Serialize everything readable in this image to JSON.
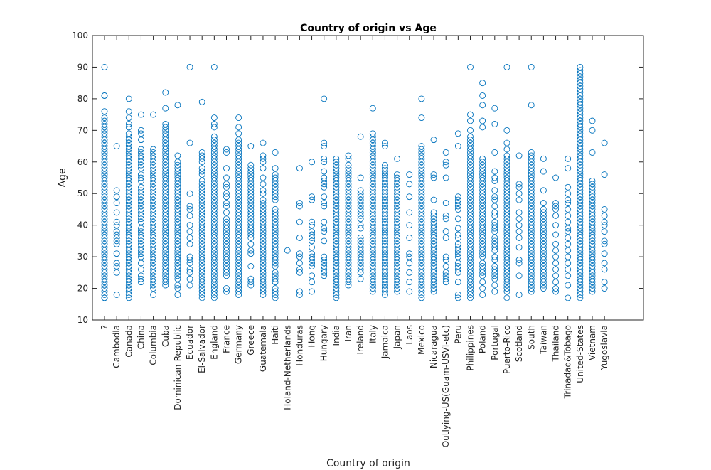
{
  "chart_data": {
    "type": "scatter",
    "title": "Country of origin vs Age",
    "xlabel": "Country of origin",
    "ylabel": "Age",
    "ylim": [
      10,
      100
    ],
    "yticks": [
      10,
      20,
      30,
      40,
      50,
      60,
      70,
      80,
      90,
      100
    ],
    "grid": false,
    "legend": "none",
    "marker": "open-circle",
    "marker_color": "#0072BD",
    "categories": [
      "?",
      "Cambodia",
      "Canada",
      "China",
      "Columbia",
      "Cuba",
      "Dominican-Republic",
      "Ecuador",
      "El-Salvador",
      "England",
      "France",
      "Germany",
      "Greece",
      "Guatemala",
      "Haiti",
      "Holand-Netherlands",
      "Honduras",
      "Hong",
      "Hungary",
      "India",
      "Iran",
      "Ireland",
      "Italy",
      "Jamaica",
      "Japan",
      "Laos",
      "Mexico",
      "Nicaragua",
      "Outlying-US(Guam-USVI-etc)",
      "Peru",
      "Philippines",
      "Poland",
      "Portugal",
      "Puerto-Rico",
      "Scotland",
      "South",
      "Taiwan",
      "Thailand",
      "Trinadad&Tobago",
      "United-States",
      "Vietnam",
      "Yugoslavia"
    ],
    "points": [
      [
        17,
        17,
        18,
        19,
        20,
        21,
        22,
        23,
        24,
        25,
        26,
        27,
        28,
        29,
        30,
        31,
        32,
        33,
        34,
        35,
        36,
        37,
        38,
        39,
        40,
        41,
        42,
        43,
        44,
        45,
        46,
        47,
        48,
        49,
        50,
        51,
        52,
        53,
        54,
        55,
        56,
        57,
        58,
        59,
        60,
        61,
        62,
        63,
        64,
        65,
        66,
        67,
        68,
        69,
        70,
        71,
        72,
        73,
        74,
        76,
        81,
        81,
        90
      ],
      [
        18,
        25,
        27,
        28,
        31,
        34,
        35,
        36,
        37,
        38,
        40,
        41,
        44,
        47,
        49,
        51,
        65
      ],
      [
        17,
        18,
        19,
        20,
        21,
        22,
        23,
        24,
        25,
        26,
        27,
        28,
        29,
        30,
        31,
        32,
        33,
        34,
        35,
        36,
        37,
        38,
        39,
        40,
        41,
        42,
        43,
        44,
        45,
        46,
        47,
        48,
        49,
        50,
        51,
        52,
        53,
        54,
        55,
        56,
        57,
        58,
        59,
        60,
        61,
        62,
        63,
        64,
        65,
        66,
        67,
        68,
        69,
        71,
        72,
        74,
        76,
        80
      ],
      [
        22,
        23,
        24,
        26,
        28,
        30,
        31,
        32,
        33,
        34,
        35,
        36,
        37,
        38,
        39,
        41,
        42,
        43,
        44,
        45,
        46,
        47,
        48,
        49,
        50,
        51,
        52,
        54,
        55,
        56,
        58,
        59,
        60,
        61,
        62,
        63,
        64,
        67,
        69,
        70,
        75
      ],
      [
        18,
        20,
        21,
        22,
        23,
        24,
        25,
        26,
        27,
        28,
        29,
        30,
        31,
        32,
        33,
        34,
        35,
        36,
        37,
        38,
        39,
        40,
        41,
        42,
        43,
        44,
        45,
        46,
        47,
        48,
        49,
        50,
        51,
        52,
        53,
        54,
        55,
        56,
        57,
        58,
        59,
        60,
        61,
        62,
        63,
        64,
        75
      ],
      [
        21,
        22,
        23,
        24,
        25,
        26,
        27,
        28,
        29,
        30,
        31,
        32,
        33,
        34,
        35,
        36,
        37,
        38,
        39,
        40,
        41,
        42,
        43,
        44,
        45,
        46,
        47,
        48,
        49,
        50,
        51,
        52,
        53,
        54,
        55,
        56,
        57,
        58,
        59,
        60,
        61,
        62,
        63,
        64,
        65,
        66,
        67,
        68,
        69,
        70,
        71,
        72,
        77,
        82
      ],
      [
        18,
        20,
        21,
        23,
        24,
        25,
        26,
        27,
        28,
        29,
        30,
        31,
        32,
        33,
        34,
        35,
        36,
        37,
        38,
        39,
        40,
        41,
        42,
        43,
        44,
        45,
        46,
        47,
        48,
        49,
        50,
        51,
        52,
        53,
        54,
        55,
        56,
        57,
        58,
        59,
        60,
        62,
        78
      ],
      [
        21,
        23,
        25,
        26,
        28,
        29,
        30,
        34,
        36,
        38,
        40,
        43,
        45,
        46,
        50,
        66,
        90
      ],
      [
        17,
        18,
        19,
        20,
        21,
        22,
        23,
        24,
        25,
        26,
        27,
        28,
        29,
        30,
        31,
        32,
        33,
        34,
        35,
        36,
        37,
        38,
        39,
        40,
        41,
        42,
        43,
        44,
        45,
        46,
        47,
        48,
        49,
        50,
        51,
        52,
        53,
        54,
        56,
        57,
        58,
        60,
        61,
        62,
        63,
        79
      ],
      [
        17,
        18,
        19,
        20,
        21,
        22,
        23,
        24,
        25,
        26,
        27,
        28,
        29,
        30,
        31,
        32,
        33,
        34,
        35,
        36,
        37,
        38,
        39,
        40,
        41,
        42,
        43,
        44,
        45,
        46,
        47,
        48,
        49,
        50,
        51,
        52,
        53,
        54,
        55,
        56,
        57,
        58,
        59,
        60,
        61,
        62,
        63,
        64,
        65,
        66,
        67,
        68,
        71,
        72,
        74,
        90
      ],
      [
        19,
        20,
        24,
        25,
        26,
        27,
        28,
        29,
        30,
        31,
        32,
        33,
        34,
        35,
        36,
        37,
        38,
        39,
        40,
        41,
        42,
        44,
        46,
        47,
        49,
        50,
        52,
        53,
        55,
        58,
        63,
        64
      ],
      [
        18,
        19,
        20,
        21,
        22,
        23,
        24,
        25,
        26,
        27,
        28,
        29,
        30,
        31,
        32,
        33,
        34,
        35,
        36,
        37,
        38,
        39,
        40,
        41,
        42,
        43,
        44,
        45,
        46,
        47,
        48,
        49,
        50,
        51,
        52,
        53,
        54,
        55,
        56,
        57,
        58,
        59,
        60,
        61,
        62,
        63,
        64,
        65,
        66,
        67,
        69,
        71,
        74
      ],
      [
        21,
        22,
        23,
        27,
        31,
        32,
        34,
        36,
        37,
        38,
        39,
        40,
        41,
        42,
        43,
        44,
        45,
        46,
        47,
        48,
        49,
        50,
        51,
        52,
        53,
        54,
        55,
        56,
        57,
        58,
        59,
        65
      ],
      [
        18,
        19,
        20,
        21,
        22,
        23,
        24,
        25,
        26,
        27,
        28,
        29,
        30,
        31,
        32,
        33,
        34,
        35,
        36,
        37,
        38,
        39,
        40,
        41,
        42,
        43,
        44,
        45,
        46,
        47,
        48,
        50,
        51,
        53,
        55,
        58,
        60,
        61,
        62,
        66
      ],
      [
        17,
        18,
        19,
        20,
        22,
        23,
        24,
        25,
        27,
        28,
        29,
        30,
        31,
        32,
        33,
        34,
        35,
        36,
        37,
        38,
        39,
        40,
        41,
        42,
        43,
        44,
        45,
        48,
        49,
        50,
        51,
        52,
        53,
        54,
        55,
        56,
        58,
        63
      ],
      [
        32
      ],
      [
        18,
        19,
        25,
        26,
        28,
        30,
        31,
        36,
        41,
        46,
        47,
        58
      ],
      [
        19,
        22,
        24,
        27,
        28,
        29,
        30,
        31,
        33,
        35,
        36,
        37,
        38,
        40,
        41,
        48,
        49,
        60
      ],
      [
        24,
        25,
        26,
        27,
        28,
        29,
        30,
        35,
        38,
        39,
        41,
        46,
        47,
        49,
        52,
        53,
        54,
        55,
        57,
        60,
        61,
        65,
        66,
        80
      ],
      [
        17,
        18,
        19,
        20,
        21,
        22,
        23,
        24,
        25,
        26,
        27,
        28,
        29,
        30,
        31,
        32,
        33,
        34,
        35,
        36,
        37,
        38,
        39,
        40,
        41,
        42,
        43,
        44,
        45,
        46,
        47,
        48,
        49,
        50,
        51,
        52,
        53,
        54,
        55,
        56,
        57,
        58,
        59,
        60,
        61
      ],
      [
        21,
        22,
        23,
        24,
        25,
        26,
        27,
        28,
        29,
        30,
        31,
        32,
        33,
        34,
        35,
        36,
        37,
        38,
        39,
        40,
        41,
        42,
        43,
        44,
        45,
        46,
        47,
        48,
        49,
        50,
        51,
        52,
        53,
        54,
        55,
        56,
        57,
        58,
        59,
        61,
        62
      ],
      [
        23,
        25,
        26,
        27,
        28,
        29,
        30,
        31,
        32,
        33,
        34,
        35,
        36,
        39,
        40,
        42,
        43,
        44,
        45,
        46,
        47,
        48,
        49,
        50,
        51,
        55,
        68
      ],
      [
        19,
        20,
        21,
        22,
        23,
        24,
        25,
        26,
        27,
        28,
        29,
        30,
        31,
        32,
        33,
        34,
        35,
        36,
        37,
        38,
        39,
        40,
        41,
        42,
        43,
        44,
        45,
        46,
        47,
        48,
        49,
        50,
        51,
        52,
        53,
        54,
        55,
        56,
        57,
        58,
        59,
        60,
        61,
        62,
        63,
        64,
        65,
        66,
        67,
        68,
        69,
        77
      ],
      [
        18,
        19,
        20,
        21,
        22,
        23,
        24,
        25,
        26,
        27,
        28,
        29,
        30,
        31,
        32,
        33,
        34,
        35,
        36,
        37,
        38,
        39,
        40,
        41,
        42,
        43,
        44,
        45,
        46,
        47,
        48,
        49,
        50,
        51,
        52,
        53,
        54,
        55,
        56,
        57,
        58,
        59,
        65,
        66
      ],
      [
        19,
        20,
        21,
        22,
        23,
        24,
        25,
        26,
        27,
        28,
        29,
        30,
        31,
        32,
        33,
        34,
        35,
        36,
        37,
        38,
        39,
        40,
        41,
        42,
        43,
        44,
        45,
        46,
        47,
        48,
        49,
        50,
        51,
        52,
        53,
        54,
        55,
        56,
        61
      ],
      [
        19,
        22,
        25,
        28,
        30,
        31,
        36,
        40,
        44,
        49,
        53,
        56
      ],
      [
        17,
        18,
        19,
        20,
        21,
        22,
        23,
        24,
        25,
        26,
        27,
        28,
        29,
        30,
        31,
        32,
        33,
        34,
        35,
        36,
        37,
        38,
        39,
        40,
        41,
        42,
        43,
        44,
        45,
        46,
        47,
        48,
        49,
        50,
        51,
        52,
        53,
        54,
        55,
        56,
        57,
        58,
        59,
        60,
        61,
        62,
        63,
        64,
        65,
        74,
        80
      ],
      [
        19,
        20,
        21,
        22,
        23,
        24,
        25,
        26,
        27,
        28,
        29,
        30,
        31,
        32,
        33,
        34,
        35,
        36,
        37,
        38,
        39,
        40,
        41,
        42,
        43,
        44,
        48,
        55,
        56,
        67
      ],
      [
        22,
        23,
        24,
        25,
        27,
        29,
        30,
        36,
        38,
        42,
        43,
        47,
        55,
        59,
        60,
        63
      ],
      [
        17,
        18,
        22,
        25,
        26,
        27,
        28,
        30,
        31,
        32,
        33,
        34,
        36,
        37,
        39,
        42,
        45,
        46,
        47,
        48,
        49,
        65,
        69
      ],
      [
        17,
        18,
        19,
        20,
        21,
        22,
        23,
        24,
        25,
        26,
        27,
        28,
        29,
        30,
        31,
        32,
        33,
        34,
        35,
        36,
        37,
        38,
        39,
        40,
        41,
        42,
        43,
        44,
        45,
        46,
        47,
        48,
        49,
        50,
        51,
        52,
        53,
        54,
        55,
        56,
        57,
        58,
        59,
        60,
        61,
        62,
        63,
        64,
        65,
        66,
        67,
        68,
        70,
        73,
        75,
        90
      ],
      [
        18,
        20,
        22,
        24,
        25,
        26,
        27,
        28,
        30,
        31,
        32,
        33,
        34,
        35,
        36,
        37,
        38,
        39,
        40,
        41,
        42,
        43,
        44,
        45,
        46,
        47,
        48,
        49,
        50,
        51,
        52,
        53,
        54,
        55,
        56,
        57,
        58,
        59,
        60,
        61,
        71,
        73,
        78,
        81,
        85
      ],
      [
        19,
        21,
        23,
        24,
        25,
        26,
        27,
        29,
        30,
        32,
        33,
        34,
        35,
        36,
        38,
        39,
        40,
        41,
        43,
        44,
        46,
        48,
        49,
        51,
        54,
        55,
        57,
        63,
        72,
        77
      ],
      [
        17,
        19,
        20,
        21,
        22,
        23,
        24,
        25,
        26,
        27,
        28,
        29,
        30,
        31,
        32,
        33,
        34,
        35,
        36,
        37,
        38,
        39,
        40,
        41,
        42,
        43,
        44,
        45,
        46,
        47,
        48,
        49,
        50,
        51,
        52,
        53,
        54,
        55,
        56,
        57,
        58,
        59,
        60,
        61,
        62,
        64,
        66,
        70,
        90
      ],
      [
        18,
        24,
        28,
        29,
        33,
        36,
        38,
        40,
        42,
        44,
        48,
        50,
        52,
        53,
        62
      ],
      [
        19,
        20,
        21,
        22,
        23,
        24,
        25,
        26,
        27,
        28,
        29,
        30,
        31,
        32,
        33,
        34,
        35,
        36,
        37,
        38,
        39,
        40,
        41,
        42,
        43,
        44,
        45,
        46,
        47,
        48,
        49,
        50,
        51,
        52,
        53,
        54,
        55,
        56,
        57,
        58,
        59,
        60,
        61,
        62,
        63,
        78,
        90
      ],
      [
        20,
        21,
        22,
        23,
        24,
        25,
        26,
        27,
        28,
        29,
        30,
        31,
        32,
        33,
        34,
        35,
        36,
        37,
        38,
        39,
        40,
        41,
        42,
        43,
        44,
        45,
        47,
        51,
        57,
        61
      ],
      [
        19,
        20,
        22,
        24,
        26,
        28,
        30,
        32,
        34,
        37,
        40,
        43,
        45,
        46,
        47,
        55
      ],
      [
        17,
        21,
        24,
        26,
        28,
        30,
        32,
        34,
        36,
        38,
        39,
        41,
        43,
        45,
        47,
        48,
        50,
        52,
        58,
        61
      ],
      [
        17,
        18,
        19,
        20,
        21,
        22,
        23,
        24,
        25,
        26,
        27,
        28,
        29,
        30,
        31,
        32,
        33,
        34,
        35,
        36,
        37,
        38,
        39,
        40,
        41,
        42,
        43,
        44,
        45,
        46,
        47,
        48,
        49,
        50,
        51,
        52,
        53,
        54,
        55,
        56,
        57,
        58,
        59,
        60,
        61,
        62,
        63,
        64,
        65,
        66,
        67,
        68,
        69,
        70,
        71,
        72,
        73,
        74,
        75,
        76,
        77,
        78,
        79,
        80,
        81,
        82,
        83,
        84,
        85,
        86,
        87,
        88,
        89,
        90
      ],
      [
        19,
        20,
        21,
        22,
        23,
        24,
        25,
        26,
        27,
        28,
        29,
        30,
        31,
        32,
        33,
        34,
        35,
        36,
        37,
        38,
        39,
        40,
        41,
        42,
        43,
        44,
        45,
        46,
        47,
        48,
        49,
        50,
        51,
        52,
        53,
        54,
        63,
        70,
        73
      ],
      [
        20,
        22,
        26,
        28,
        31,
        34,
        35,
        38,
        40,
        41,
        43,
        45,
        56,
        66
      ]
    ]
  }
}
